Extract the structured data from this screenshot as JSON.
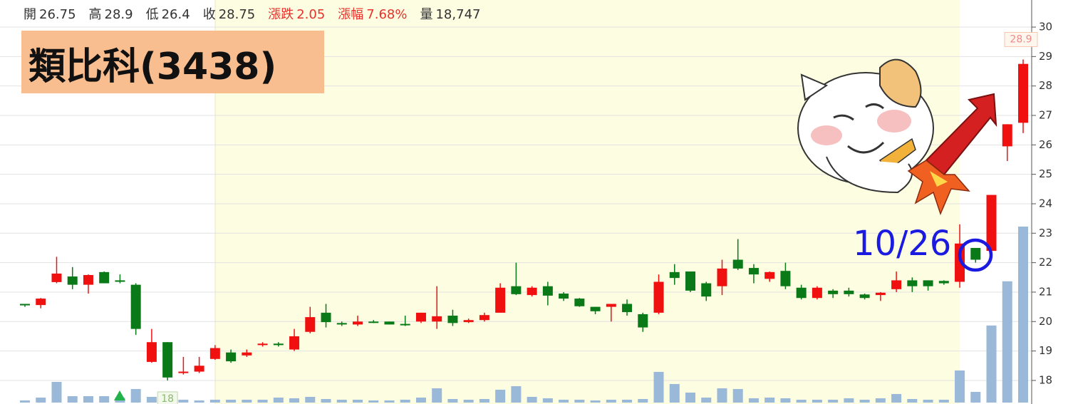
{
  "header": [
    {
      "label": "開",
      "value": "26.75",
      "color": "#333333"
    },
    {
      "label": "高",
      "value": "28.9",
      "color": "#333333"
    },
    {
      "label": "低",
      "value": "26.4",
      "color": "#333333"
    },
    {
      "label": "收",
      "value": "28.75",
      "color": "#333333"
    },
    {
      "label": "漲跌",
      "value": "2.05",
      "color": "#e8312a"
    },
    {
      "label": "漲幅",
      "value": "7.68%",
      "color": "#e8312a"
    },
    {
      "label": "量",
      "value": "18,747",
      "color": "#333333"
    }
  ],
  "chart_data": {
    "type": "candlestick",
    "title": "類比科(3438)",
    "annotation": "10/26",
    "high_label": "28.9",
    "low_label": "18",
    "up_color": "#f01010",
    "down_color": "#0a7a18",
    "volume_color": "#9ab8d8",
    "grid": true,
    "ylim": [
      17.2,
      30.92
    ],
    "yticks": [
      18,
      19,
      20,
      21,
      22,
      23,
      24,
      25,
      26,
      27,
      28,
      29,
      30
    ],
    "open": [
      20.6,
      20.56,
      21.34,
      21.53,
      21.25,
      21.68,
      21.4,
      21.25,
      18.63,
      19.3,
      18.25,
      18.3,
      18.73,
      18.95,
      18.85,
      19.2,
      19.25,
      19.05,
      19.65,
      20.3,
      19.95,
      19.9,
      20.0,
      20.0,
      19.92,
      20.0,
      20.0,
      20.2,
      19.98,
      20.05,
      20.3,
      21.2,
      20.9,
      21.2,
      20.95,
      20.78,
      20.5,
      20.5,
      20.6,
      20.25,
      20.3,
      21.68,
      21.7,
      21.3,
      21.2,
      22.1,
      21.82,
      21.45,
      21.72,
      21.15,
      20.8,
      21.05,
      21.05,
      20.92,
      20.9,
      21.1,
      21.4,
      21.4,
      21.38,
      21.35,
      22.5,
      22.4,
      25.95,
      26.75
    ],
    "high": [
      20.6,
      20.8,
      22.2,
      21.85,
      21.6,
      21.7,
      21.6,
      21.3,
      19.75,
      19.3,
      18.8,
      18.8,
      19.2,
      19.05,
      19.05,
      19.3,
      19.3,
      19.75,
      20.5,
      20.6,
      20.0,
      20.2,
      20.05,
      20.0,
      20.2,
      20.3,
      21.2,
      20.4,
      20.1,
      20.3,
      21.3,
      22.0,
      21.2,
      21.35,
      21.0,
      20.8,
      20.5,
      20.6,
      20.75,
      20.3,
      21.6,
      21.95,
      21.7,
      21.35,
      22.1,
      22.8,
      21.95,
      21.7,
      22.0,
      21.25,
      21.2,
      21.1,
      21.15,
      20.95,
      21.0,
      21.7,
      21.5,
      21.4,
      21.4,
      23.3,
      22.5,
      24.3,
      26.7,
      28.9
    ],
    "low": [
      20.5,
      20.45,
      21.3,
      21.1,
      20.95,
      21.3,
      21.3,
      19.55,
      18.6,
      18.0,
      18.2,
      18.25,
      18.7,
      18.6,
      18.8,
      19.15,
      19.15,
      19.0,
      19.6,
      19.8,
      19.85,
      19.85,
      19.95,
      19.9,
      19.85,
      19.95,
      19.75,
      19.85,
      19.95,
      20.0,
      20.3,
      20.9,
      20.85,
      20.55,
      20.7,
      20.5,
      20.25,
      20.0,
      20.2,
      19.65,
      20.25,
      21.25,
      21.0,
      20.7,
      20.9,
      21.75,
      21.3,
      21.35,
      21.1,
      20.75,
      20.75,
      20.8,
      20.85,
      20.75,
      20.7,
      21.0,
      21.0,
      21.05,
      21.25,
      21.15,
      22.0,
      22.4,
      25.45,
      26.4
    ],
    "close": [
      20.55,
      20.78,
      21.63,
      21.25,
      21.58,
      21.3,
      21.35,
      19.75,
      19.3,
      18.1,
      18.3,
      18.5,
      19.1,
      18.65,
      18.95,
      19.25,
      19.2,
      19.5,
      20.15,
      19.98,
      19.9,
      20.0,
      19.98,
      19.9,
      19.88,
      20.3,
      20.18,
      19.95,
      20.05,
      20.22,
      21.15,
      20.93,
      21.15,
      20.88,
      20.78,
      20.52,
      20.35,
      20.6,
      20.32,
      19.8,
      21.35,
      21.48,
      21.05,
      20.85,
      21.8,
      21.8,
      21.6,
      21.68,
      21.2,
      20.8,
      21.15,
      20.93,
      20.93,
      20.8,
      20.98,
      21.4,
      21.2,
      21.2,
      21.3,
      22.65,
      22.1,
      24.3,
      26.7,
      28.75
    ],
    "volume": [
      228,
      532,
      2204,
      684,
      684,
      684,
      532,
      1444,
      608,
      380,
      304,
      228,
      304,
      304,
      304,
      304,
      532,
      456,
      608,
      380,
      304,
      304,
      228,
      228,
      304,
      532,
      1520,
      380,
      304,
      380,
      1368,
      1748,
      608,
      456,
      304,
      304,
      228,
      304,
      304,
      380,
      3268,
      1976,
      1064,
      532,
      1520,
      1444,
      456,
      532,
      456,
      304,
      304,
      304,
      456,
      304,
      456,
      912,
      380,
      304,
      304,
      3420,
      1140,
      8208,
      12920,
      18747
    ]
  }
}
